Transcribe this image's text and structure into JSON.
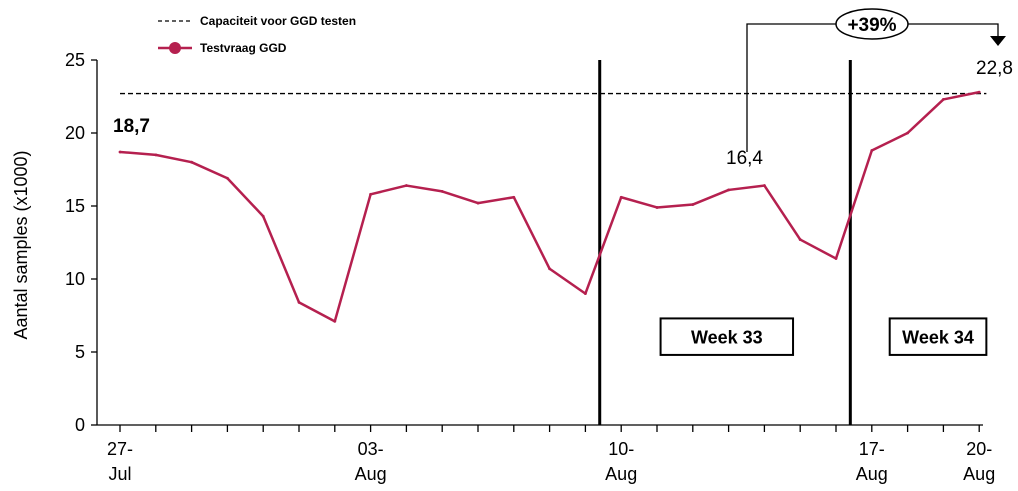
{
  "chart_data": {
    "type": "line",
    "ylabel": "Aantal samples (x1000)",
    "ylim": [
      0,
      25
    ],
    "yticks": [
      "0",
      "5",
      "10",
      "15",
      "20",
      "25"
    ],
    "x_range": [
      0,
      24.4
    ],
    "xtick_labels": [
      {
        "x": 0,
        "line1": "27-",
        "line2": "Jul"
      },
      {
        "x": 7,
        "line1": "03-",
        "line2": "Aug"
      },
      {
        "x": 14,
        "line1": "10-",
        "line2": "Aug"
      },
      {
        "x": 21,
        "line1": "17-",
        "line2": "Aug"
      },
      {
        "x": 24,
        "line1": "20-",
        "line2": "Aug"
      }
    ],
    "minor_ticks": [
      1,
      2,
      3,
      4,
      5,
      6,
      8,
      9,
      10,
      11,
      12,
      13,
      15,
      16,
      17,
      18,
      19,
      20,
      22,
      23
    ],
    "legend": {
      "placement": "top-left",
      "entries": [
        {
          "label": "Capaciteit voor GGD testen",
          "style": "dashed",
          "color": "#000000"
        },
        {
          "label": "Testvraag GGD",
          "style": "line-marker",
          "color": "#b5204f"
        }
      ]
    },
    "capacity": {
      "name": "Capaciteit voor GGD testen",
      "value": 22.7,
      "color": "#000000"
    },
    "series": [
      {
        "name": "Testvraag GGD",
        "color": "#b5204f",
        "x": [
          0,
          1,
          2,
          3,
          4,
          5,
          6,
          7,
          8,
          9,
          10,
          11,
          12,
          13,
          14,
          15,
          16,
          17,
          18,
          19,
          20,
          21,
          22,
          23,
          24
        ],
        "values": [
          18.7,
          18.5,
          18.0,
          16.9,
          14.3,
          8.4,
          7.1,
          15.8,
          16.4,
          16.0,
          15.2,
          15.6,
          10.7,
          9.0,
          15.6,
          14.9,
          15.1,
          16.1,
          16.4,
          12.7,
          11.4,
          18.8,
          20.0,
          22.3,
          22.8
        ]
      }
    ],
    "vlines": [
      {
        "name": "week-33-start",
        "x": 13.4
      },
      {
        "name": "week-34-start",
        "x": 20.4
      }
    ],
    "week_boxes": [
      {
        "label": "Week 33",
        "x_from": 15.1,
        "x_to": 18.8,
        "y_from": 4.8,
        "y_to": 7.3
      },
      {
        "label": "Week 34",
        "x_from": 21.5,
        "x_to": 24.2,
        "y_from": 4.8,
        "y_to": 7.3
      }
    ],
    "annotations": {
      "start_label": "18,7",
      "mid_label": "16,4",
      "end_label": "22,8",
      "increase_label": "+39%",
      "bracket_from_x": 18.3,
      "bracket_to_x": 24.6
    }
  }
}
